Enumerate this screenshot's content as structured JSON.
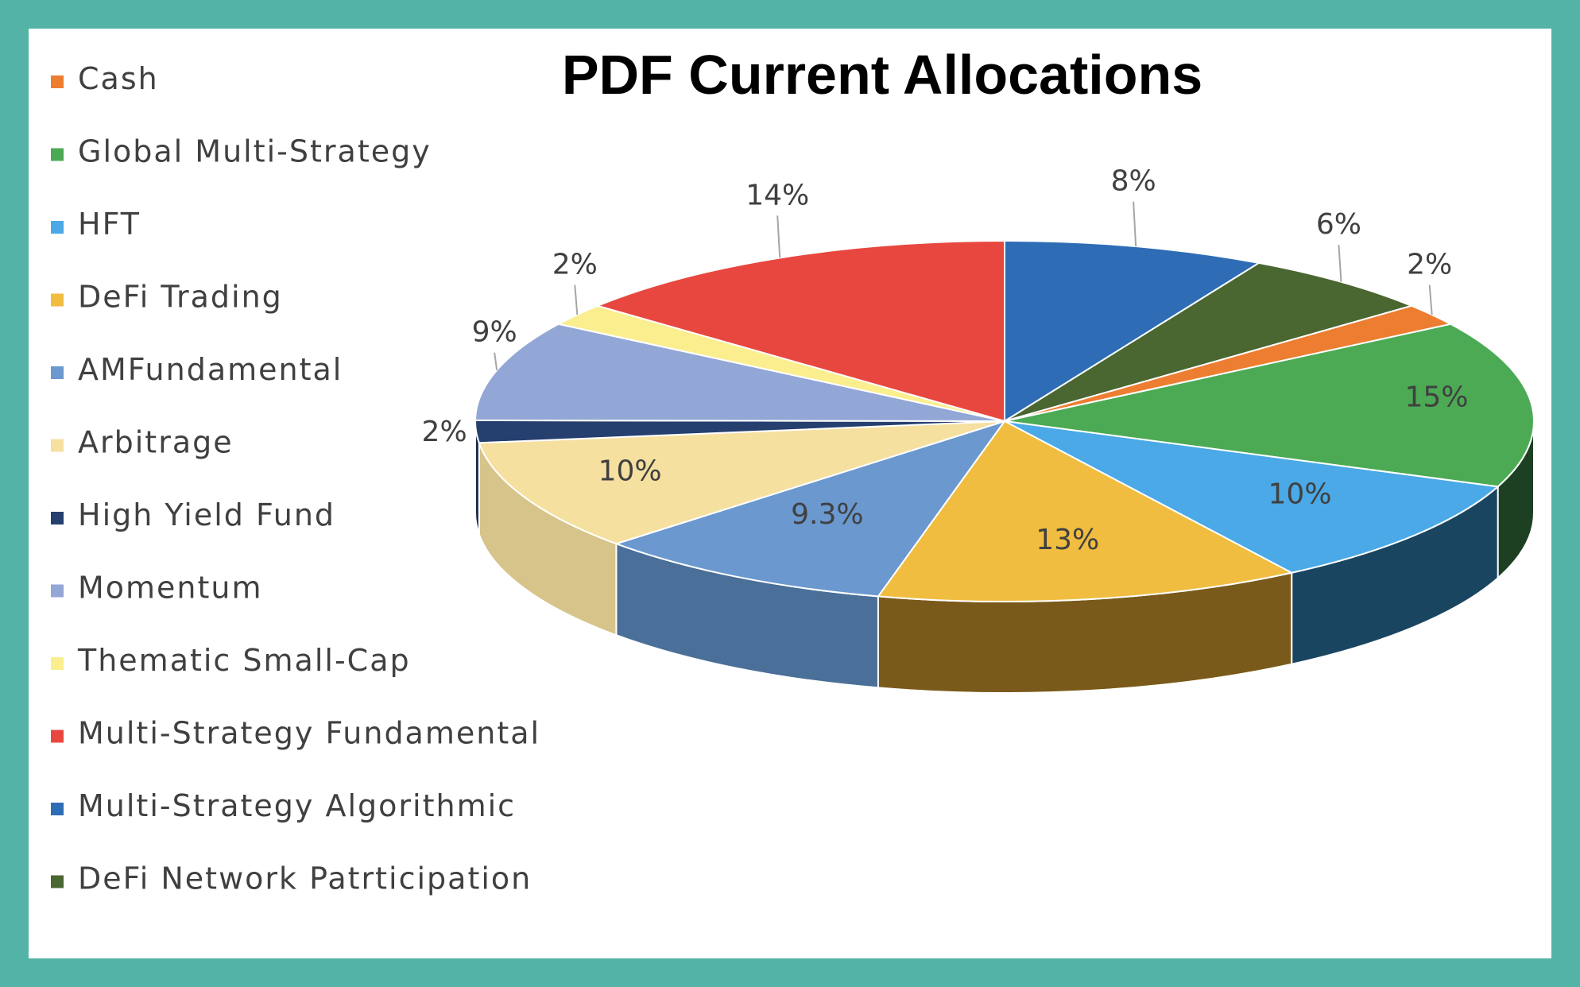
{
  "chart_data": {
    "type": "pie",
    "title": "PDF Current Allocations",
    "legend_position": "left",
    "three_d": true,
    "slices": [
      {
        "label": "Multi-Strategy Algorithmic",
        "pct_label": "8%",
        "value": 8,
        "color": "#2e6db5",
        "side": "#1f4c80"
      },
      {
        "label": "DeFi Network Patrticipation",
        "pct_label": "6%",
        "value": 6,
        "color": "#4a6631",
        "side": "#314520"
      },
      {
        "label": "Cash",
        "pct_label": "2%",
        "value": 2,
        "color": "#ed7d31",
        "side": "#a8561f"
      },
      {
        "label": "Global Multi-Strategy",
        "pct_label": "15%",
        "value": 15,
        "color": "#4caa55",
        "side": "#1d3f22"
      },
      {
        "label": "HFT",
        "pct_label": "10%",
        "value": 10,
        "color": "#4aa9e6",
        "side": "#1a4560"
      },
      {
        "label": "DeFi Trading",
        "pct_label": "13%",
        "value": 13,
        "color": "#f0bd41",
        "side": "#7a5a1a"
      },
      {
        "label": "AMFundamental",
        "pct_label": "9.3%",
        "value": 9.3,
        "color": "#6a98cf",
        "side": "#4a6f98"
      },
      {
        "label": "Arbitrage",
        "pct_label": "10%",
        "value": 10,
        "color": "#f5e0a0",
        "side": "#d6c48a"
      },
      {
        "label": "High Yield Fund",
        "pct_label": "2%",
        "value": 2,
        "color": "#253f6e",
        "side": "#18294a"
      },
      {
        "label": "Momentum",
        "pct_label": "9%",
        "value": 9,
        "color": "#93a7d6",
        "side": "#6f80a6"
      },
      {
        "label": "Thematic Small-Cap",
        "pct_label": "2%",
        "value": 2,
        "color": "#fbee8e",
        "side": "#d4c86f"
      },
      {
        "label": "Multi-Strategy Fundamental",
        "pct_label": "14%",
        "value": 14,
        "color": "#e8473f",
        "side": "#a0302a"
      }
    ],
    "legend": [
      {
        "label": "Cash",
        "color": "#ed7d31"
      },
      {
        "label": "Global Multi-Strategy",
        "color": "#4caa55"
      },
      {
        "label": "HFT",
        "color": "#4aa9e6"
      },
      {
        "label": "DeFi Trading",
        "color": "#f0bd41"
      },
      {
        "label": "AMFundamental",
        "color": "#6a98cf"
      },
      {
        "label": "Arbitrage",
        "color": "#f5e0a0"
      },
      {
        "label": "High Yield Fund",
        "color": "#253f6e"
      },
      {
        "label": "Momentum",
        "color": "#93a7d6"
      },
      {
        "label": "Thematic Small-Cap",
        "color": "#fbee8e"
      },
      {
        "label": "Multi-Strategy Fundamental",
        "color": "#e8473f"
      },
      {
        "label": "Multi-Strategy Algorithmic",
        "color": "#2e6db5"
      },
      {
        "label": "DeFi Network Patrticipation",
        "color": "#4a6631"
      }
    ]
  }
}
